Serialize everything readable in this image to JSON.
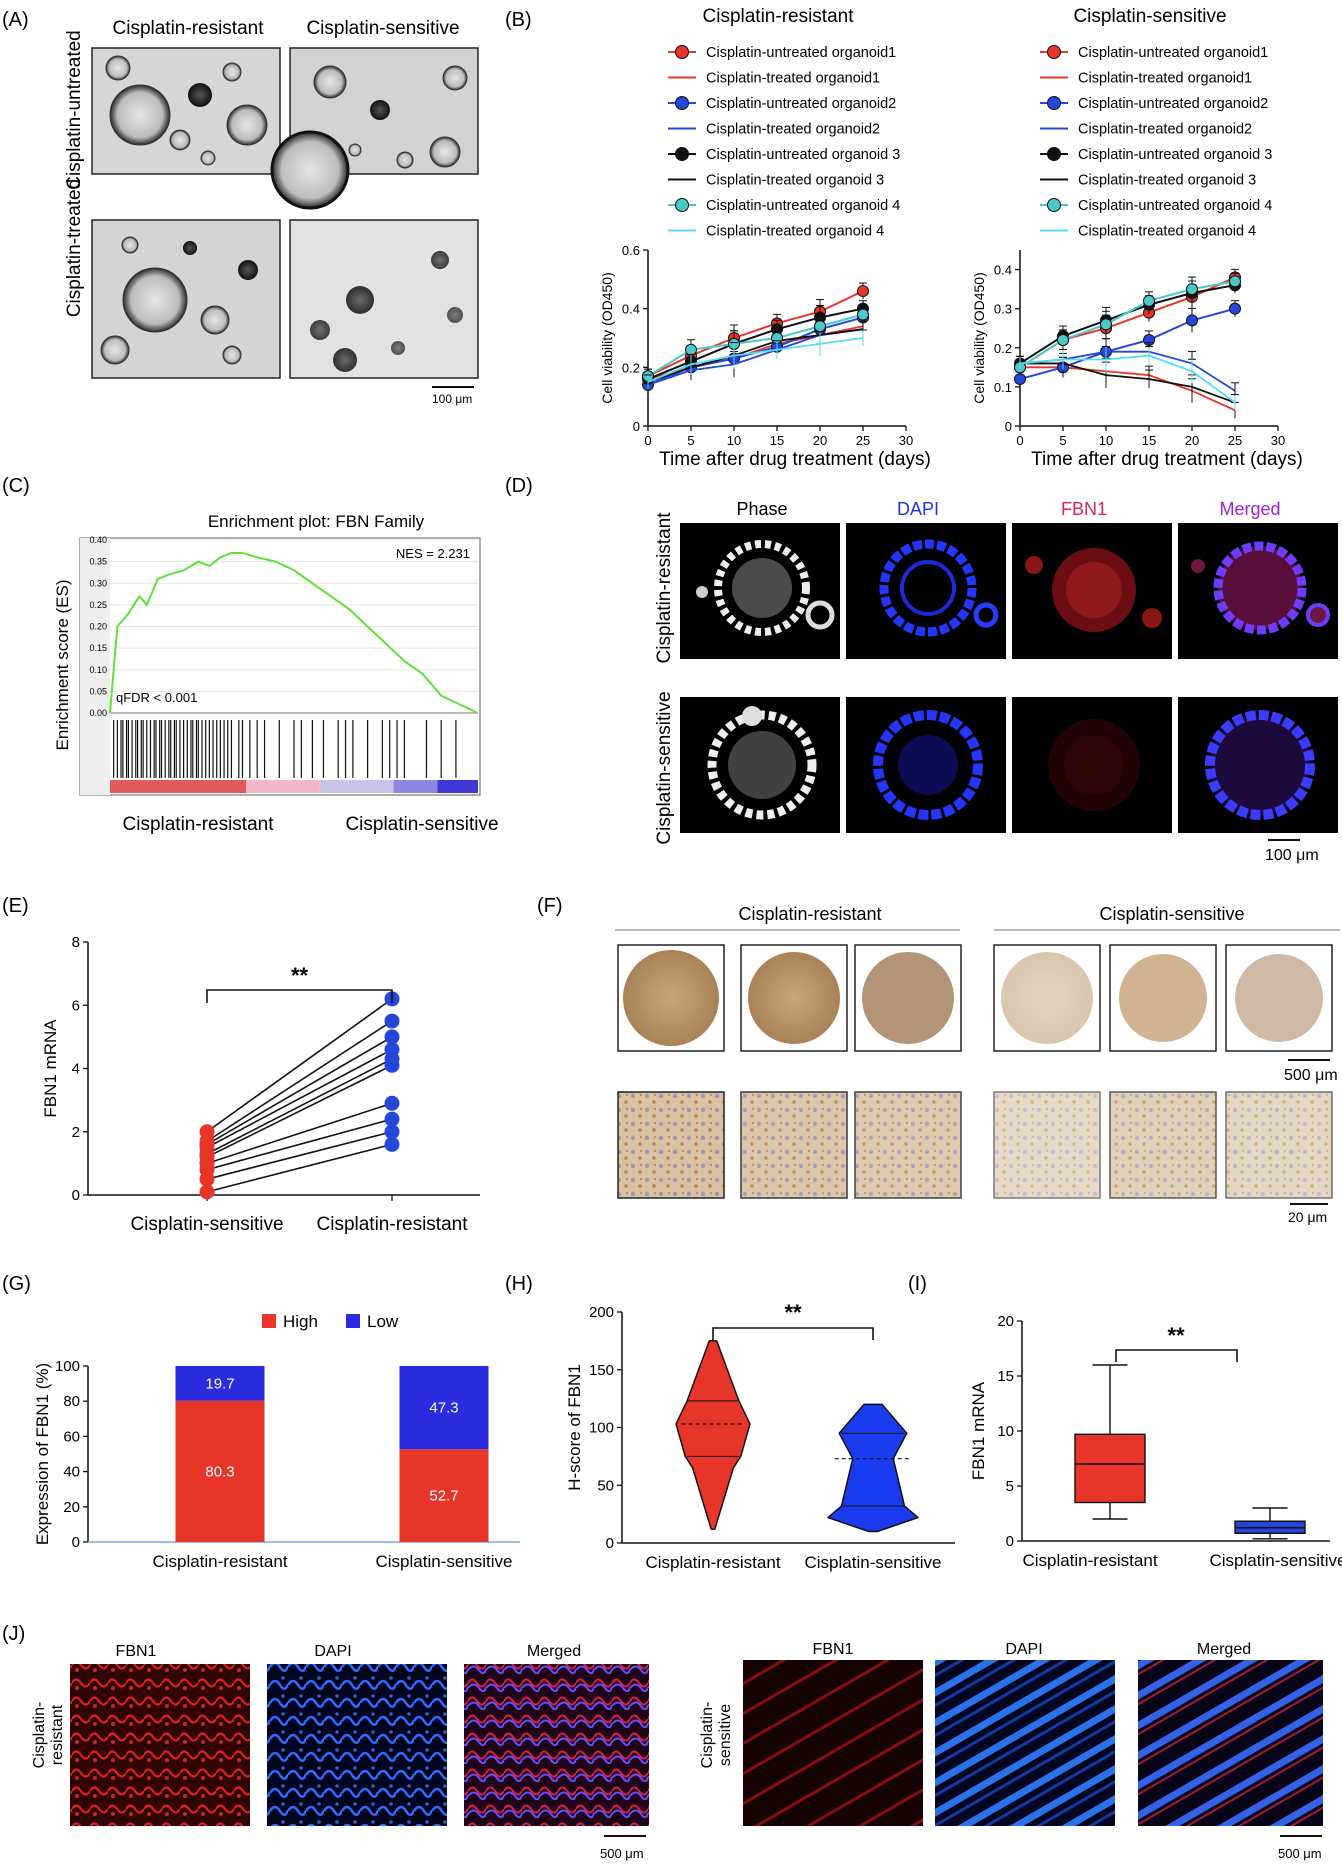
{
  "panels": {
    "A": {
      "label": "(A)",
      "col1": "Cisplatin-resistant",
      "col2": "Cisplatin-sensitive",
      "row1": "Cisplatin-untreated",
      "row2": "Cisplatin-treated",
      "scale": "100 μm"
    },
    "B": {
      "label": "(B)",
      "xlabel": "Time after drug treatment (days)",
      "ylabel": "Cell viability (OD450)"
    },
    "C": {
      "label": "(C)",
      "title": "Enrichment plot: FBN Family",
      "ylabel": "Enrichment score (ES)",
      "nes": "NES = 2.231",
      "qfdr": "qFDR < 0.001",
      "left": "Cisplatin-resistant",
      "right": "Cisplatin-sensitive"
    },
    "D": {
      "label": "(D)",
      "cols": [
        "Phase",
        "DAPI",
        "FBN1",
        "Merged"
      ],
      "col_colors": [
        "#111111",
        "#2233dd",
        "#dd2255",
        "#9922dd"
      ],
      "rows": [
        "Cisplatin-resistant",
        "Cisplatin-sensitive"
      ],
      "scale": "100 μm"
    },
    "E": {
      "label": "(E)",
      "ylabel": "FBN1 mRNA",
      "sig": "**"
    },
    "F": {
      "label": "(F)",
      "group1": "Cisplatin-resistant",
      "group2": "Cisplatin-sensitive",
      "scale1": "500 μm",
      "scale2": "20 μm"
    },
    "G": {
      "label": "(G)",
      "ylabel": "Expression of FBN1 (%)"
    },
    "H": {
      "label": "(H)",
      "ylabel": "H-score of FBN1",
      "sig": "**"
    },
    "I": {
      "label": "(I)",
      "ylabel": "FBN1 mRNA",
      "sig": "**"
    },
    "J": {
      "label": "(J)",
      "cols": [
        "FBN1",
        "DAPI",
        "Merged"
      ],
      "row1": [
        "Cisplatin-",
        "resistant"
      ],
      "row2": [
        "Cisplatin-",
        "sensitive"
      ],
      "scale": "500 μm"
    }
  },
  "chart_data": [
    {
      "id": "B1",
      "type": "line",
      "title": "Cisplatin-resistant",
      "x": [
        0,
        5,
        10,
        15,
        20,
        25
      ],
      "xlim": [
        0,
        30
      ],
      "ylim": [
        0,
        0.6
      ],
      "yticks": [
        0,
        0.2,
        0.4,
        0.6
      ],
      "series": [
        {
          "name": "Cisplatin-untreated organoid1",
          "color": "#e8352a",
          "marker": true,
          "values": [
            0.17,
            0.24,
            0.3,
            0.35,
            0.39,
            0.46
          ]
        },
        {
          "name": "Cisplatin-treated organoid1",
          "color": "#e8352a",
          "marker": false,
          "values": [
            0.16,
            0.2,
            0.23,
            0.28,
            0.31,
            0.34
          ]
        },
        {
          "name": "Cisplatin-untreated organoid2",
          "color": "#2546d8",
          "marker": true,
          "values": [
            0.14,
            0.2,
            0.23,
            0.27,
            0.33,
            0.37
          ]
        },
        {
          "name": "Cisplatin-treated organoid2",
          "color": "#2546d8",
          "marker": false,
          "values": [
            0.14,
            0.19,
            0.21,
            0.26,
            0.31,
            0.33
          ]
        },
        {
          "name": "Cisplatin-untreated organoid 3",
          "color": "#111111",
          "marker": true,
          "values": [
            0.16,
            0.22,
            0.28,
            0.33,
            0.37,
            0.4
          ]
        },
        {
          "name": "Cisplatin-treated organoid 3",
          "color": "#111111",
          "marker": false,
          "values": [
            0.15,
            0.2,
            0.24,
            0.29,
            0.31,
            0.33
          ]
        },
        {
          "name": "Cisplatin-untreated organoid 4",
          "color": "#4cc8c8",
          "marker": true,
          "values": [
            0.17,
            0.26,
            0.28,
            0.3,
            0.34,
            0.38
          ]
        },
        {
          "name": "Cisplatin-treated organoid 4",
          "color": "#55ddf2",
          "marker": false,
          "values": [
            0.15,
            0.21,
            0.24,
            0.26,
            0.28,
            0.3
          ]
        }
      ]
    },
    {
      "id": "B2",
      "type": "line",
      "title": "Cisplatin-sensitive",
      "x": [
        0,
        5,
        10,
        15,
        20,
        25
      ],
      "xlim": [
        0,
        30
      ],
      "ylim": [
        0,
        0.45
      ],
      "yticks": [
        0,
        0.1,
        0.2,
        0.3,
        0.4
      ],
      "series": [
        {
          "name": "Cisplatin-untreated organoid1",
          "color": "#e8352a",
          "marker": true,
          "values": [
            0.15,
            0.22,
            0.25,
            0.29,
            0.33,
            0.38
          ]
        },
        {
          "name": "Cisplatin-treated organoid1",
          "color": "#e8352a",
          "marker": false,
          "values": [
            0.15,
            0.15,
            0.14,
            0.13,
            0.09,
            0.04
          ]
        },
        {
          "name": "Cisplatin-untreated organoid2",
          "color": "#2546d8",
          "marker": true,
          "values": [
            0.12,
            0.15,
            0.19,
            0.22,
            0.27,
            0.3
          ]
        },
        {
          "name": "Cisplatin-treated organoid2",
          "color": "#2546d8",
          "marker": false,
          "values": [
            0.16,
            0.17,
            0.19,
            0.19,
            0.16,
            0.09
          ]
        },
        {
          "name": "Cisplatin-untreated organoid 3",
          "color": "#111111",
          "marker": true,
          "values": [
            0.16,
            0.23,
            0.27,
            0.31,
            0.34,
            0.36
          ]
        },
        {
          "name": "Cisplatin-treated organoid 3",
          "color": "#111111",
          "marker": false,
          "values": [
            0.16,
            0.16,
            0.13,
            0.12,
            0.1,
            0.06
          ]
        },
        {
          "name": "Cisplatin-untreated organoid 4",
          "color": "#4cc8c8",
          "marker": true,
          "values": [
            0.15,
            0.22,
            0.26,
            0.32,
            0.35,
            0.37
          ]
        },
        {
          "name": "Cisplatin-treated organoid 4",
          "color": "#55ddf2",
          "marker": false,
          "values": [
            0.16,
            0.17,
            0.17,
            0.18,
            0.14,
            0.06
          ]
        }
      ]
    },
    {
      "id": "C",
      "type": "line",
      "title": "Enrichment plot: FBN Family",
      "ylim": [
        0,
        0.4
      ],
      "yticks": [
        0,
        0.05,
        0.1,
        0.15,
        0.2,
        0.25,
        0.3,
        0.35,
        0.4
      ],
      "points": [
        [
          0,
          0
        ],
        [
          0.02,
          0.2
        ],
        [
          0.05,
          0.23
        ],
        [
          0.08,
          0.27
        ],
        [
          0.1,
          0.25
        ],
        [
          0.13,
          0.31
        ],
        [
          0.16,
          0.32
        ],
        [
          0.2,
          0.33
        ],
        [
          0.24,
          0.35
        ],
        [
          0.27,
          0.34
        ],
        [
          0.3,
          0.36
        ],
        [
          0.33,
          0.37
        ],
        [
          0.36,
          0.37
        ],
        [
          0.4,
          0.36
        ],
        [
          0.45,
          0.35
        ],
        [
          0.5,
          0.33
        ],
        [
          0.55,
          0.3
        ],
        [
          0.6,
          0.27
        ],
        [
          0.65,
          0.24
        ],
        [
          0.7,
          0.2
        ],
        [
          0.75,
          0.16
        ],
        [
          0.8,
          0.12
        ],
        [
          0.85,
          0.09
        ],
        [
          0.9,
          0.04
        ],
        [
          0.95,
          0.02
        ],
        [
          1,
          0.0
        ]
      ],
      "hits": [
        0.01,
        0.02,
        0.03,
        0.035,
        0.045,
        0.05,
        0.06,
        0.07,
        0.075,
        0.085,
        0.09,
        0.1,
        0.11,
        0.12,
        0.125,
        0.135,
        0.14,
        0.15,
        0.16,
        0.165,
        0.175,
        0.18,
        0.19,
        0.2,
        0.21,
        0.22,
        0.225,
        0.235,
        0.24,
        0.25,
        0.26,
        0.27,
        0.28,
        0.29,
        0.3,
        0.31,
        0.32,
        0.33,
        0.35,
        0.36,
        0.38,
        0.4,
        0.42,
        0.46,
        0.5,
        0.52,
        0.55,
        0.58,
        0.62,
        0.64,
        0.66,
        0.7,
        0.74,
        0.76,
        0.78,
        0.8,
        0.86,
        0.9,
        0.94
      ]
    },
    {
      "id": "E",
      "type": "scatter",
      "categories": [
        "Cisplatin-sensitive",
        "Cisplatin-resistant"
      ],
      "ylim": [
        0,
        8
      ],
      "yticks": [
        0,
        2,
        4,
        6,
        8
      ],
      "pairs": [
        [
          0.1,
          1.6
        ],
        [
          0.5,
          2.0
        ],
        [
          0.8,
          2.4
        ],
        [
          1.0,
          2.9
        ],
        [
          1.2,
          4.1
        ],
        [
          1.3,
          4.3
        ],
        [
          1.5,
          4.6
        ],
        [
          1.6,
          5.0
        ],
        [
          1.7,
          5.5
        ],
        [
          2.0,
          6.2
        ]
      ]
    },
    {
      "id": "G",
      "type": "bar",
      "categories": [
        "Cisplatin-resistant",
        "Cisplatin-sensitive"
      ],
      "ylim": [
        0,
        100
      ],
      "yticks": [
        0,
        20,
        40,
        60,
        80,
        100
      ],
      "series": [
        {
          "name": "High",
          "color": "#e8352a",
          "values": [
            80.3,
            52.7
          ]
        },
        {
          "name": "Low",
          "color": "#2b2be0",
          "values": [
            19.7,
            47.3
          ]
        }
      ]
    },
    {
      "id": "H",
      "type": "violin",
      "categories": [
        "Cisplatin-resistant",
        "Cisplatin-sensitive"
      ],
      "ylim": [
        0,
        200
      ],
      "yticks": [
        0,
        50,
        100,
        150,
        200
      ],
      "violins": [
        {
          "color": "#e8352a",
          "min": 12,
          "max": 175,
          "q1": 75,
          "median": 103,
          "q3": 123
        },
        {
          "color": "#1a3cf0",
          "min": 10,
          "max": 120,
          "q1": 32,
          "median": 73,
          "q3": 95
        }
      ]
    },
    {
      "id": "I",
      "type": "box",
      "categories": [
        "Cisplatin-resistant",
        "Cisplatin-sensitive"
      ],
      "ylim": [
        0,
        20
      ],
      "yticks": [
        0,
        5,
        10,
        15,
        20
      ],
      "boxes": [
        {
          "color": "#e8352a",
          "min": 2.0,
          "q1": 3.5,
          "median": 7.0,
          "q3": 9.7,
          "max": 16.0
        },
        {
          "color": "#2546d8",
          "min": 0.2,
          "q1": 0.7,
          "median": 1.2,
          "q3": 1.8,
          "max": 3.0
        }
      ]
    }
  ]
}
